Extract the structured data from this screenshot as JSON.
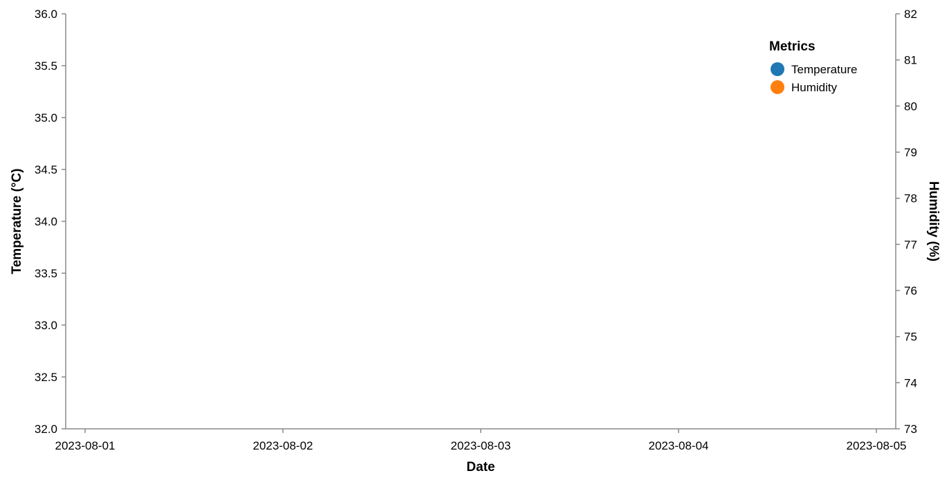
{
  "chart_data": {
    "type": "line",
    "title": "",
    "xlabel": "Date",
    "ylabel_left": "Temperature (°C)",
    "ylabel_right": "Humidity (%)",
    "x_ticks": [
      "2023-08-01",
      "2023-08-02",
      "2023-08-03",
      "2023-08-04",
      "2023-08-05"
    ],
    "y_left_ticks": [
      "32.0",
      "32.5",
      "33.0",
      "33.5",
      "34.0",
      "34.5",
      "35.0",
      "35.5",
      "36.0"
    ],
    "y_left_range": [
      32.0,
      36.0
    ],
    "y_right_ticks": [
      "73",
      "74",
      "75",
      "76",
      "77",
      "78",
      "79",
      "80",
      "81",
      "82"
    ],
    "y_right_range": [
      73,
      82
    ],
    "grid": false,
    "legend": {
      "title": "Metrics",
      "placement": "top-right",
      "entries": [
        {
          "label": "Temperature",
          "color": "#1f77b4"
        },
        {
          "label": "Humidity",
          "color": "#ff7f0e"
        }
      ]
    },
    "series": []
  }
}
